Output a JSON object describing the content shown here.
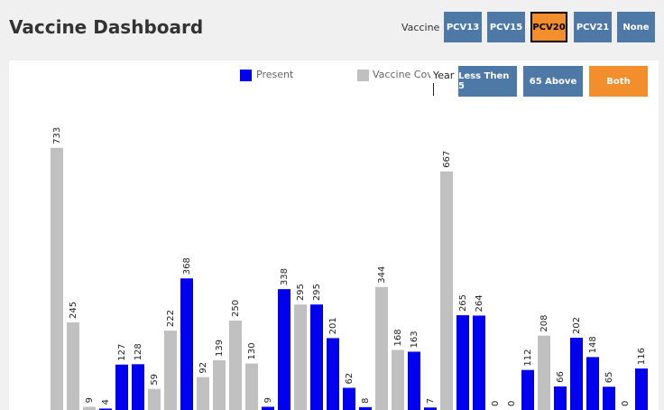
{
  "header": {
    "title": "Vaccine Dashboard"
  },
  "vaccine_filter": {
    "label": "Vaccine",
    "options": [
      "PCV13",
      "PCV15",
      "PCV20",
      "PCV21",
      "None"
    ],
    "selected": "PCV20"
  },
  "year_filter": {
    "label": "Year",
    "options": [
      "Less Then 5",
      "65 Above",
      "Both"
    ],
    "selected": "Both"
  },
  "colors": {
    "present": "#0000ee",
    "coverage": "#c0c0c0",
    "button": "#4e79a7",
    "selected": "#f28e2b"
  },
  "chart_data": {
    "type": "bar",
    "legend": [
      {
        "name": "Present",
        "color": "#0000ee"
      },
      {
        "name": "Vaccine Cov",
        "color": "#c0c0c0"
      }
    ],
    "ylim": [
      0,
      750
    ],
    "bars": [
      {
        "value": 733,
        "series": "Vaccine Cov"
      },
      {
        "value": 245,
        "series": "Vaccine Cov"
      },
      {
        "value": 9,
        "series": "Vaccine Cov"
      },
      {
        "value": 4,
        "series": "Present"
      },
      {
        "value": 127,
        "series": "Present"
      },
      {
        "value": 128,
        "series": "Present"
      },
      {
        "value": 59,
        "series": "Vaccine Cov"
      },
      {
        "value": 222,
        "series": "Vaccine Cov"
      },
      {
        "value": 368,
        "series": "Present"
      },
      {
        "value": 92,
        "series": "Vaccine Cov"
      },
      {
        "value": 139,
        "series": "Vaccine Cov"
      },
      {
        "value": 250,
        "series": "Vaccine Cov"
      },
      {
        "value": 130,
        "series": "Vaccine Cov"
      },
      {
        "value": 9,
        "series": "Present"
      },
      {
        "value": 338,
        "series": "Present"
      },
      {
        "value": 295,
        "series": "Vaccine Cov"
      },
      {
        "value": 295,
        "series": "Present"
      },
      {
        "value": 201,
        "series": "Present"
      },
      {
        "value": 62,
        "series": "Present"
      },
      {
        "value": 8,
        "series": "Present"
      },
      {
        "value": 344,
        "series": "Vaccine Cov"
      },
      {
        "value": 168,
        "series": "Vaccine Cov"
      },
      {
        "value": 163,
        "series": "Present"
      },
      {
        "value": 7,
        "series": "Present"
      },
      {
        "value": 667,
        "series": "Vaccine Cov"
      },
      {
        "value": 265,
        "series": "Present"
      },
      {
        "value": 264,
        "series": "Present"
      },
      {
        "value": 0,
        "series": "Present"
      },
      {
        "value": 0,
        "series": "Present"
      },
      {
        "value": 112,
        "series": "Present"
      },
      {
        "value": 208,
        "series": "Vaccine Cov"
      },
      {
        "value": 66,
        "series": "Present"
      },
      {
        "value": 202,
        "series": "Present"
      },
      {
        "value": 148,
        "series": "Present"
      },
      {
        "value": 65,
        "series": "Present"
      },
      {
        "value": 0,
        "series": "Present"
      },
      {
        "value": 116,
        "series": "Present"
      }
    ]
  }
}
